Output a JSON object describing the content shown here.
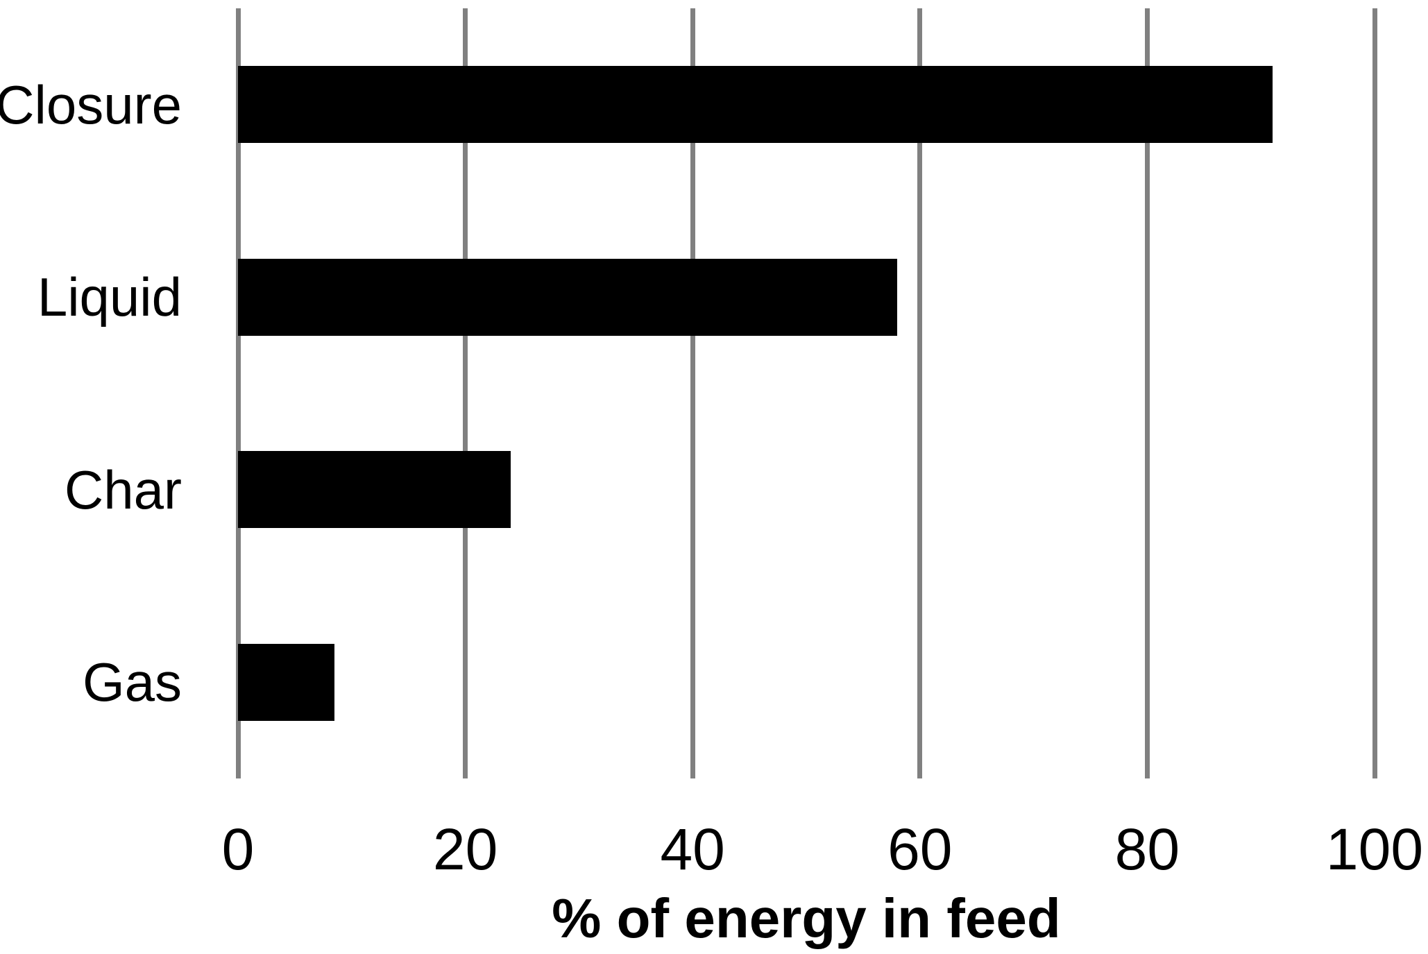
{
  "chart_data": {
    "type": "bar",
    "orientation": "horizontal",
    "categories": [
      "Closure",
      "Liquid",
      "Char",
      "Gas"
    ],
    "values": [
      91,
      58,
      24,
      8.5
    ],
    "title": "",
    "xlabel": "% of energy in feed",
    "ylabel": "",
    "xlim": [
      0,
      100
    ],
    "xticks": [
      0,
      20,
      40,
      60,
      80,
      100
    ],
    "grid": true,
    "legend": false,
    "bar_color": "#000000",
    "gridline_color": "#808080",
    "text_color": "#000000",
    "background_color": "#ffffff"
  }
}
